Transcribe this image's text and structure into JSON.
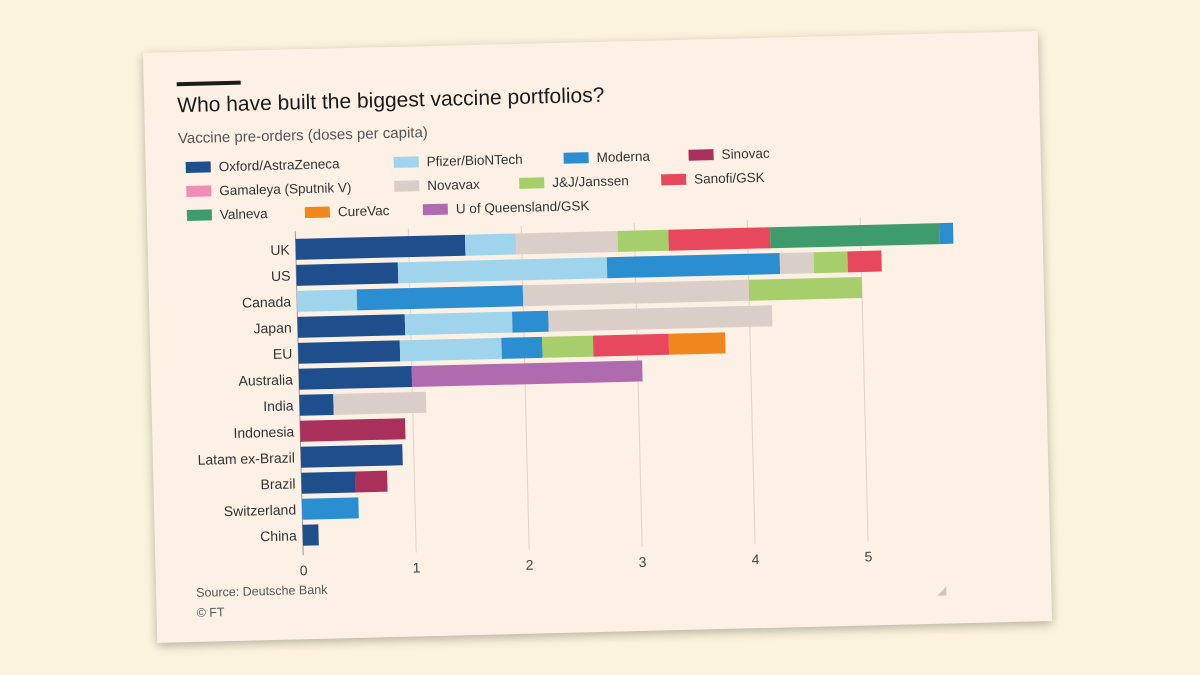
{
  "title": "Who have built the biggest vaccine portfolios?",
  "subtitle": "Vaccine pre-orders (doses per capita)",
  "source": "Source: Deutsche Bank",
  "credit": "© FT",
  "colors": {
    "background": "#fbf3dc",
    "card": "#fdf1e6",
    "grid": "#dcd3ca",
    "text": "#333333"
  },
  "chart_data": {
    "type": "bar",
    "orientation": "horizontal",
    "stacked": true,
    "title": "Who have built the biggest vaccine portfolios?",
    "subtitle": "Vaccine pre-orders (doses per capita)",
    "xlim": [
      0,
      5.8
    ],
    "x_ticks": [
      0,
      1,
      2,
      3,
      4,
      5
    ],
    "grid": true,
    "legend_position": "top",
    "series": [
      {
        "name": "Oxford/AstraZeneca",
        "color": "#1f4e8c"
      },
      {
        "name": "Pfizer/BioNTech",
        "color": "#9fd4ec"
      },
      {
        "name": "Moderna",
        "color": "#2a8ed1"
      },
      {
        "name": "Sinovac",
        "color": "#a8305a"
      },
      {
        "name": "Gamaleya (Sputnik V)",
        "color": "#f08cb8"
      },
      {
        "name": "Novavax",
        "color": "#d9cfc8"
      },
      {
        "name": "J&J/Janssen",
        "color": "#a6cf6b"
      },
      {
        "name": "Sanofi/GSK",
        "color": "#e8485d"
      },
      {
        "name": "Valneva",
        "color": "#3e9b6c"
      },
      {
        "name": "CureVac",
        "color": "#f0871d"
      },
      {
        "name": "U of Queensland/GSK",
        "color": "#b06aae"
      }
    ],
    "categories": [
      "UK",
      "US",
      "Canada",
      "Japan",
      "EU",
      "Australia",
      "India",
      "Indonesia",
      "Latam ex-Brazil",
      "Brazil",
      "Switzerland",
      "China"
    ],
    "values": {
      "UK": {
        "Oxford/AstraZeneca": 1.5,
        "Pfizer/BioNTech": 0.45,
        "Novavax": 0.9,
        "J&J/Janssen": 0.45,
        "Sanofi/GSK": 0.9,
        "Valneva": 1.5,
        "Moderna": 0.12
      },
      "US": {
        "Oxford/AstraZeneca": 0.9,
        "Pfizer/BioNTech": 1.85,
        "Moderna": 1.53,
        "Novavax": 0.3,
        "J&J/Janssen": 0.3,
        "Sanofi/GSK": 0.3
      },
      "Canada": {
        "Pfizer/BioNTech": 0.53,
        "Moderna": 1.47,
        "Novavax": 2.0,
        "J&J/Janssen": 1.0
      },
      "Japan": {
        "Oxford/AstraZeneca": 0.95,
        "Pfizer/BioNTech": 0.95,
        "Moderna": 0.32,
        "Novavax": 1.98
      },
      "EU": {
        "Oxford/AstraZeneca": 0.9,
        "Pfizer/BioNTech": 0.9,
        "Moderna": 0.36,
        "J&J/Janssen": 0.45,
        "Sanofi/GSK": 0.67,
        "CureVac": 0.5
      },
      "Australia": {
        "Oxford/AstraZeneca": 1.0,
        "U of Queensland/GSK": 2.04
      },
      "India": {
        "Oxford/AstraZeneca": 0.3,
        "Novavax": 0.82
      },
      "Indonesia": {
        "Sinovac": 0.93
      },
      "Latam ex-Brazil": {
        "Oxford/AstraZeneca": 0.9
      },
      "Brazil": {
        "Oxford/AstraZeneca": 0.48,
        "Sinovac": 0.28
      },
      "Switzerland": {
        "Moderna": 0.5
      },
      "China": {
        "Oxford/AstraZeneca": 0.14
      }
    }
  }
}
